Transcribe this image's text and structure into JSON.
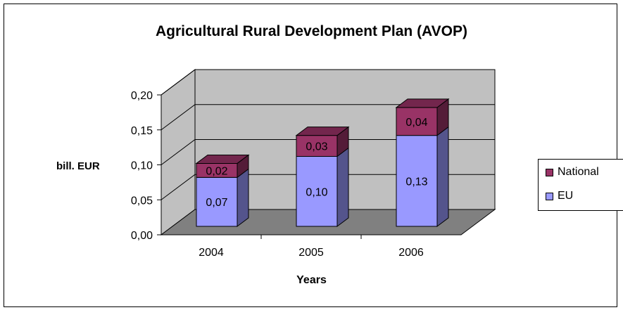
{
  "chart_data": {
    "type": "bar",
    "stacked": true,
    "three_d": true,
    "title": "Agricultural Rural Development Plan (AVOP)",
    "xlabel": "Years",
    "ylabel": "bill. EUR",
    "categories": [
      "2004",
      "2005",
      "2006"
    ],
    "series": [
      {
        "name": "EU",
        "values": [
          0.07,
          0.1,
          0.13
        ],
        "labels": [
          "0,07",
          "0,10",
          "0,13"
        ],
        "color": "#9999ff"
      },
      {
        "name": "National",
        "values": [
          0.02,
          0.03,
          0.04
        ],
        "labels": [
          "0,02",
          "0,03",
          "0,04"
        ],
        "color": "#993366"
      }
    ],
    "ylim": [
      0,
      0.2
    ],
    "yticks": [
      "0,00",
      "0,05",
      "0,10",
      "0,15",
      "0,20"
    ],
    "grid": true,
    "legend": "right",
    "colors": {
      "wall": "#c0c0c0",
      "floor": "#808080"
    }
  }
}
